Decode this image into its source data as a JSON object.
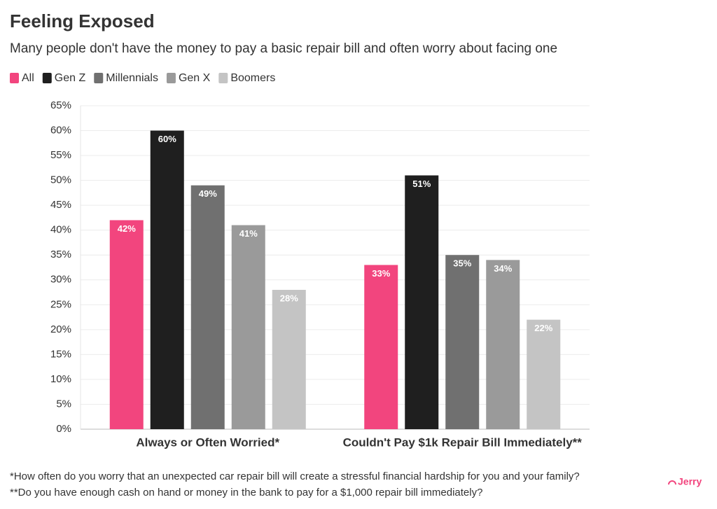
{
  "chart_data": {
    "type": "bar",
    "title": "Feeling Exposed",
    "subtitle": "Many people don't have the money to pay a basic repair bill and often worry about facing one",
    "categories": [
      "Always or Often Worried*",
      "Couldn't Pay $1k Repair Bill Immediately**"
    ],
    "series": [
      {
        "name": "All",
        "color": "#f2457e",
        "values": [
          42,
          33
        ],
        "value_labels": [
          "42%",
          "33%"
        ]
      },
      {
        "name": "Gen Z",
        "color": "#1f1f1f",
        "values": [
          60,
          51
        ],
        "value_labels": [
          "60%",
          "51%"
        ]
      },
      {
        "name": "Millennials",
        "color": "#707070",
        "values": [
          49,
          35
        ],
        "value_labels": [
          "49%",
          "35%"
        ]
      },
      {
        "name": "Gen X",
        "color": "#9a9a9a",
        "values": [
          41,
          34
        ],
        "value_labels": [
          "41%",
          "34%"
        ]
      },
      {
        "name": "Boomers",
        "color": "#c4c4c4",
        "values": [
          28,
          22
        ],
        "value_labels": [
          "28%",
          "22%"
        ]
      }
    ],
    "ylim": [
      0,
      65
    ],
    "yticks": [
      {
        "value": 0,
        "label": "0%"
      },
      {
        "value": 5,
        "label": "5%"
      },
      {
        "value": 10,
        "label": "10%"
      },
      {
        "value": 15,
        "label": "15%"
      },
      {
        "value": 20,
        "label": "20%"
      },
      {
        "value": 25,
        "label": "25%"
      },
      {
        "value": 30,
        "label": "30%"
      },
      {
        "value": 35,
        "label": "35%"
      },
      {
        "value": 40,
        "label": "40%"
      },
      {
        "value": 45,
        "label": "45%"
      },
      {
        "value": 50,
        "label": "50%"
      },
      {
        "value": 55,
        "label": "55%"
      },
      {
        "value": 60,
        "label": "60%"
      },
      {
        "value": 65,
        "label": "65%"
      }
    ],
    "grid": true,
    "legend": "top-left",
    "notes": [
      "*How often do you worry that an unexpected car repair bill will create a stressful financial hardship for you and your family?",
      "**Do you have enough cash on hand or money in the bank to pay for a $1,000 repair bill immediately?"
    ],
    "brand": "Jerry"
  }
}
